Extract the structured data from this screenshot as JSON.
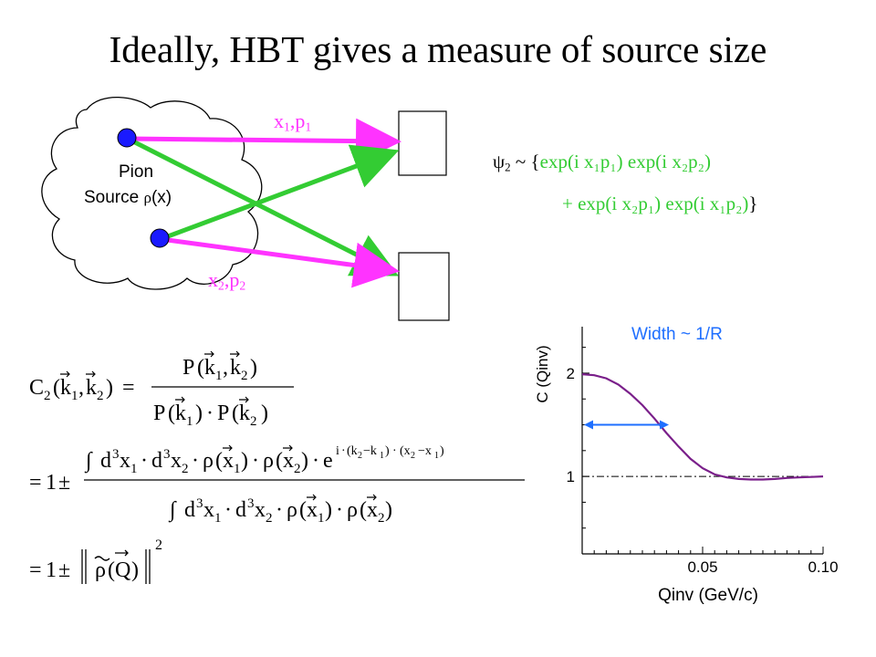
{
  "title": "Ideally, HBT gives a measure of source size",
  "diagram": {
    "source_label_line1": "Pion",
    "source_label_line2": "Source",
    "density_symbol": "ρ",
    "density_arg": "(x)",
    "particle1": {
      "x": "x",
      "sub1": "1",
      "comma": ",",
      "p": "p",
      "sub2": "1"
    },
    "particle2": {
      "x": "x",
      "sub1": "2",
      "comma": ",",
      "p": "p",
      "sub2": "2"
    }
  },
  "wavefunction": {
    "psi": "ψ",
    "psi_sub": "2",
    "tilde": "~",
    "open_brace": "{",
    "close_brace": "}",
    "plus": "+",
    "term1": "exp(i x₁p₁) exp(i x₂p₂)",
    "term2": "exp(i x₂p₁) exp(i x₁p₂)"
  },
  "formulas": {
    "C2": "C",
    "C2_sub": "2",
    "k1": "k",
    "k_sub1": "1",
    "k_sub2": "2",
    "P": "P",
    "eq1_plusminus": "= 1 ±",
    "d3x": "d",
    "rho": "ρ",
    "exp_e": "e",
    "i": "i",
    "integral": "∫",
    "Q": "Q",
    "square": "2",
    "dot": "·"
  },
  "chart_data": {
    "type": "line",
    "xlabel": "Qinv (GeV/c)",
    "ylabel": "C (Qinv)",
    "x_tick_labels": [
      "0.05",
      "0.10"
    ],
    "y_tick_labels": [
      "1",
      "2"
    ],
    "xlim": [
      0.0,
      0.1
    ],
    "ylim": [
      0.25,
      2.45
    ],
    "annotation": "Width ~ 1/R",
    "series": [
      {
        "color": "#7a1f8a",
        "x": [
          0.0,
          0.005,
          0.01,
          0.015,
          0.02,
          0.025,
          0.03,
          0.035,
          0.04,
          0.045,
          0.05,
          0.055,
          0.06,
          0.065,
          0.07,
          0.075,
          0.08,
          0.085,
          0.09,
          0.095,
          0.1
        ],
        "y": [
          1.99,
          1.98,
          1.95,
          1.89,
          1.8,
          1.69,
          1.56,
          1.42,
          1.29,
          1.17,
          1.08,
          1.02,
          0.99,
          0.975,
          0.97,
          0.97,
          0.975,
          0.985,
          0.99,
          0.995,
          1.0
        ]
      }
    ],
    "reference_line_y": 1.0
  },
  "colors": {
    "magenta": "#ff33ff",
    "green": "#33cc33",
    "blue_dot": "#1a1aff",
    "curve": "#7a1f8a",
    "arrow_blue": "#1f6fff"
  }
}
